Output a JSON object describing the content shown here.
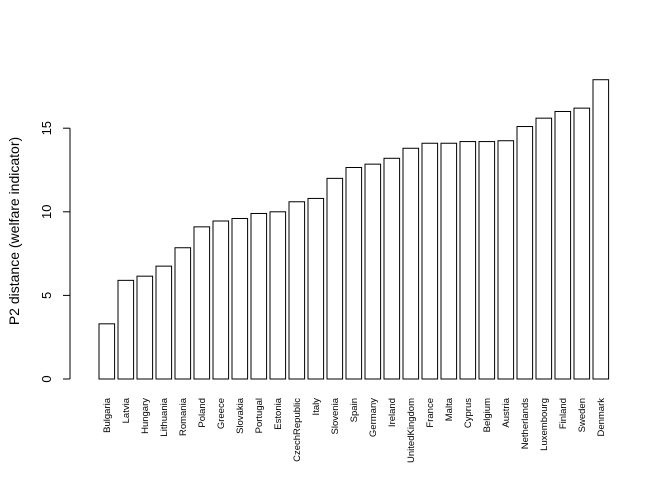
{
  "chart_data": {
    "type": "bar",
    "title": "",
    "xlabel": "",
    "ylabel": "P2 distance (welfare indicator)",
    "ylim": [
      0,
      18.5
    ],
    "yticks": [
      0,
      5,
      10,
      15
    ],
    "grid": false,
    "categories": [
      "Bulgaria",
      "Latvia",
      "Hungary",
      "Lithuania",
      "Romania",
      "Poland",
      "Greece",
      "Slovakia",
      "Portugal",
      "Estonia",
      "CzechRepublic",
      "Italy",
      "Slovenia",
      "Spain",
      "Germany",
      "Ireland",
      "UnitedKingdom",
      "France",
      "Malta",
      "Cyprus",
      "Belgium",
      "Austria",
      "Netherlands",
      "Luxembourg",
      "Finland",
      "Sweden",
      "Denmark"
    ],
    "values": [
      3.3,
      5.9,
      6.15,
      6.75,
      7.85,
      9.1,
      9.45,
      9.6,
      9.9,
      10.0,
      10.6,
      10.8,
      12.0,
      12.65,
      12.85,
      13.2,
      13.8,
      14.1,
      14.1,
      14.2,
      14.2,
      14.25,
      15.1,
      15.6,
      16.0,
      16.2,
      17.9
    ]
  }
}
